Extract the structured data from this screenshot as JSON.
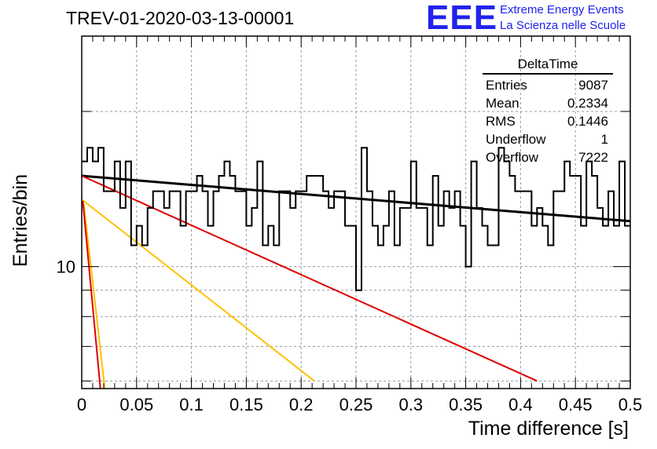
{
  "title": "TREV-01-2020-03-13-00001",
  "logo": {
    "text": "EEE",
    "line1": "Extreme Energy Events",
    "line2": "La Scienza nelle Scuole"
  },
  "colors": {
    "histogram": "#000000",
    "fit_total": "#000000",
    "fit_red": "#dd0000",
    "fit_yellow": "#ffc000",
    "grid": "#999999"
  },
  "stats": {
    "title": "DeltaTime",
    "rows": [
      {
        "label": "Entries",
        "value": "9087"
      },
      {
        "label": "Mean",
        "value": "0.2334"
      },
      {
        "label": "RMS",
        "value": "0.1446"
      },
      {
        "label": "Underflow",
        "value": "1"
      },
      {
        "label": "Overflow",
        "value": "7222"
      }
    ]
  },
  "chart_data": {
    "type": "histogram",
    "xlabel": "Time difference [s]",
    "ylabel": "Entries/bin",
    "xlim": [
      0,
      0.5
    ],
    "ylim": [
      5.8,
      28
    ],
    "yscale": "log",
    "grid": true,
    "xticks": [
      "0",
      "0.05",
      "0.1",
      "0.15",
      "0.2",
      "0.25",
      "0.3",
      "0.35",
      "0.4",
      "0.45",
      "0.5"
    ],
    "ytick_labels": [
      {
        "value": 10,
        "label": "10"
      }
    ],
    "bin_width": 0.005,
    "histogram_values": [
      16,
      17,
      16,
      17,
      14,
      14,
      16,
      13,
      16,
      11,
      12,
      11,
      13,
      14,
      14,
      13,
      14,
      14,
      12,
      14,
      14,
      15,
      14,
      12,
      14,
      15,
      16,
      15,
      14,
      14,
      12,
      13,
      16,
      11,
      12,
      11,
      14,
      14,
      13,
      14,
      14,
      15,
      15,
      15,
      14,
      13,
      14,
      14,
      12,
      12,
      9,
      17,
      14,
      12,
      11,
      12,
      14,
      11,
      13,
      13,
      16,
      13,
      13,
      11,
      15,
      12,
      14,
      13,
      14,
      12,
      10,
      16,
      13,
      12,
      11,
      11,
      17,
      16,
      15,
      14,
      14,
      14,
      12,
      13,
      12,
      11,
      14,
      14,
      16,
      15,
      15,
      12,
      16,
      15,
      13,
      12,
      14,
      12,
      16,
      12
    ],
    "fit_lines": [
      {
        "name": "",
        "color": "black",
        "x": [
          0,
          0.5
        ],
        "y": [
          15.0,
          12.25
        ]
      },
      {
        "name": "",
        "color": "red",
        "x": [
          0,
          0.415
        ],
        "y": [
          15.0,
          6.0
        ]
      },
      {
        "name": "",
        "color": "yellow",
        "x": [
          0,
          0.212
        ],
        "y": [
          13.5,
          6.0
        ]
      },
      {
        "name": "",
        "color": "yellow",
        "x": [
          0.002,
          0.021
        ],
        "y": [
          13.2,
          5.8
        ]
      },
      {
        "name": "",
        "color": "red",
        "x": [
          0.001,
          0.017
        ],
        "y": [
          13.4,
          5.8
        ]
      }
    ]
  }
}
